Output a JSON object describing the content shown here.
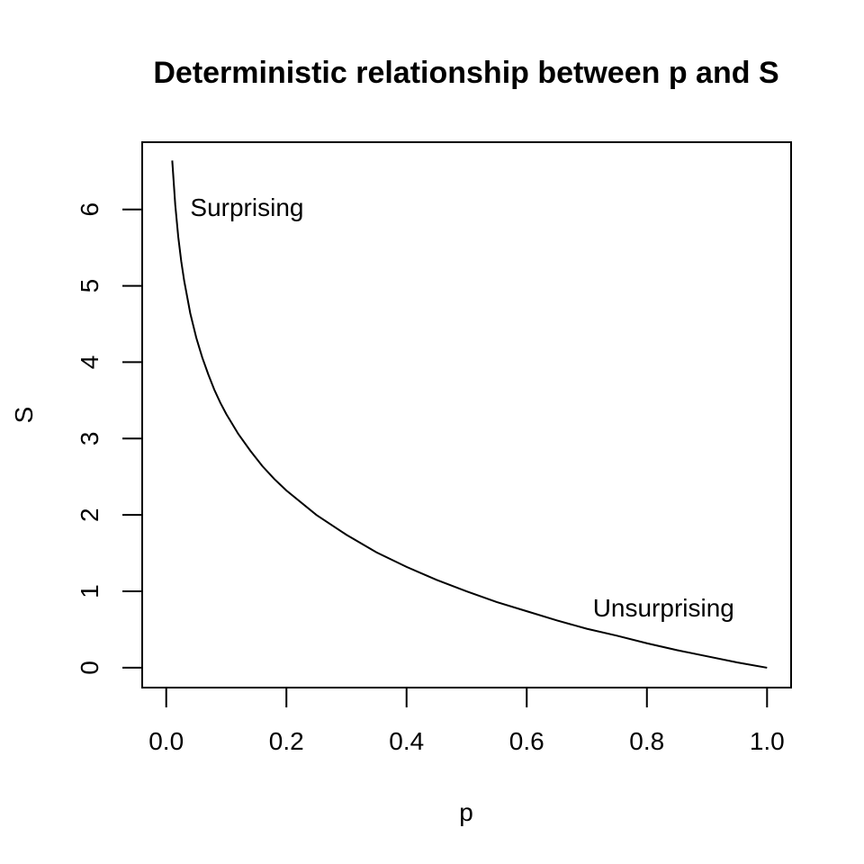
{
  "chart_data": {
    "type": "line",
    "title": "Deterministic relationship between p and S",
    "xlabel": "p",
    "ylabel": "S",
    "xlim": [
      -0.04,
      1.04
    ],
    "ylim": [
      -0.26,
      6.88
    ],
    "xticks": [
      0.0,
      0.2,
      0.4,
      0.6,
      0.8,
      1.0
    ],
    "xtick_labels": [
      "0.0",
      "0.2",
      "0.4",
      "0.6",
      "0.8",
      "1.0"
    ],
    "yticks": [
      0,
      1,
      2,
      3,
      4,
      5,
      6
    ],
    "ytick_labels": [
      "0",
      "1",
      "2",
      "3",
      "4",
      "5",
      "6"
    ],
    "grid": false,
    "legend": "none",
    "series": [
      {
        "x": [
          0.01,
          0.015,
          0.02,
          0.025,
          0.03,
          0.04,
          0.05,
          0.06,
          0.07,
          0.08,
          0.09,
          0.1,
          0.12,
          0.14,
          0.16,
          0.18,
          0.2,
          0.25,
          0.3,
          0.35,
          0.4,
          0.45,
          0.5,
          0.55,
          0.6,
          0.65,
          0.7,
          0.75,
          0.8,
          0.85,
          0.9,
          0.95,
          1.0
        ],
        "y": [
          6.64,
          6.06,
          5.64,
          5.32,
          5.06,
          4.64,
          4.32,
          4.06,
          3.84,
          3.64,
          3.47,
          3.32,
          3.06,
          2.84,
          2.64,
          2.47,
          2.32,
          2.0,
          1.74,
          1.51,
          1.32,
          1.15,
          1.0,
          0.86,
          0.74,
          0.62,
          0.51,
          0.42,
          0.32,
          0.23,
          0.15,
          0.07,
          0.0
        ]
      }
    ],
    "annotations": [
      {
        "text": "Surprising",
        "x": 0.04,
        "y": 6.0,
        "anchor": "start"
      },
      {
        "text": "Unsurprising",
        "x": 0.71,
        "y": 0.76,
        "anchor": "start"
      }
    ]
  }
}
